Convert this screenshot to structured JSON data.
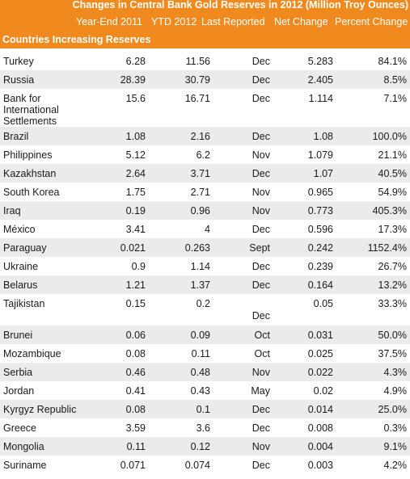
{
  "title": "Changes in Central Bank Gold Reserves in 2012 (Million Troy Ounces)",
  "columns": {
    "year_end_2011": "Year-End 2011",
    "ytd_2012": "YTD 2012",
    "last_reported": "Last Reported",
    "net_change": "Net Change",
    "percent_change": "Percent Change"
  },
  "section": "Countries Increasing Reserves",
  "rows": [
    {
      "country": "Turkey",
      "y2011": "6.28",
      "ytd2012": "11.56",
      "last": "Dec",
      "net": "5.283",
      "pct": "84.1%"
    },
    {
      "country": "Russia",
      "y2011": "28.39",
      "ytd2012": "30.79",
      "last": "Dec",
      "net": "2.405",
      "pct": "8.5%"
    },
    {
      "country": "Bank for\nInternational\nSettlements",
      "y2011": "15.6",
      "ytd2012": "16.71",
      "last": "Dec",
      "net": "1.114",
      "pct": "7.1%"
    },
    {
      "country": "Brazil",
      "y2011": "1.08",
      "ytd2012": "2.16",
      "last": "Dec",
      "net": "1.08",
      "pct": "100.0%"
    },
    {
      "country": "Philippines",
      "y2011": "5.12",
      "ytd2012": "6.2",
      "last": "Nov",
      "net": "1.079",
      "pct": "21.1%"
    },
    {
      "country": "Kazakhstan",
      "y2011": "2.64",
      "ytd2012": "3.71",
      "last": "Dec",
      "net": "1.07",
      "pct": "40.5%"
    },
    {
      "country": "South Korea",
      "y2011": "1.75",
      "ytd2012": "2.71",
      "last": "Nov",
      "net": "0.965",
      "pct": "54.9%"
    },
    {
      "country": "Iraq",
      "y2011": "0.19",
      "ytd2012": "0.96",
      "last": "Nov",
      "net": "0.773",
      "pct": "405.3%"
    },
    {
      "country": "México",
      "y2011": "3.41",
      "ytd2012": "4",
      "last": "Dec",
      "net": "0.596",
      "pct": "17.3%"
    },
    {
      "country": "Paraguay",
      "y2011": "0.021",
      "ytd2012": "0.263",
      "last": "Sept",
      "net": "0.242",
      "pct": "1152.4%"
    },
    {
      "country": "Ukraine",
      "y2011": "0.9",
      "ytd2012": "1.14",
      "last": "Dec",
      "net": "0.239",
      "pct": "26.7%"
    },
    {
      "country": "Belarus",
      "y2011": "1.21",
      "ytd2012": "1.37",
      "last": "Dec",
      "net": "0.164",
      "pct": "13.2%"
    },
    {
      "country": "Tajikistan",
      "y2011": "0.15",
      "ytd2012": "0.2",
      "last": "Dec",
      "net": "0.05",
      "pct": "33.3%"
    },
    {
      "country": "Brunei",
      "y2011": "0.06",
      "ytd2012": "0.09",
      "last": "Oct",
      "net": "0.031",
      "pct": "50.0%"
    },
    {
      "country": "Mozambique",
      "y2011": "0.08",
      "ytd2012": "0.11",
      "last": "Oct",
      "net": "0.025",
      "pct": "37.5%"
    },
    {
      "country": "Serbia",
      "y2011": "0.46",
      "ytd2012": "0.48",
      "last": "Nov",
      "net": "0.022",
      "pct": "4.3%"
    },
    {
      "country": "Jordan",
      "y2011": "0.41",
      "ytd2012": "0.43",
      "last": "May",
      "net": "0.02",
      "pct": "4.9%"
    },
    {
      "country": "Kyrgyz Republic",
      "y2011": "0.08",
      "ytd2012": "0.1",
      "last": "Dec",
      "net": "0.014",
      "pct": "25.0%"
    },
    {
      "country": "Greece",
      "y2011": "3.59",
      "ytd2012": "3.6",
      "last": "Dec",
      "net": "0.008",
      "pct": "0.3%"
    },
    {
      "country": "Mongolia",
      "y2011": "0.11",
      "ytd2012": "0.12",
      "last": "Nov",
      "net": "0.004",
      "pct": "9.1%"
    },
    {
      "country": "Suriname",
      "y2011": "0.071",
      "ytd2012": "0.074",
      "last": "Dec",
      "net": "0.003",
      "pct": "4.2%"
    }
  ]
}
